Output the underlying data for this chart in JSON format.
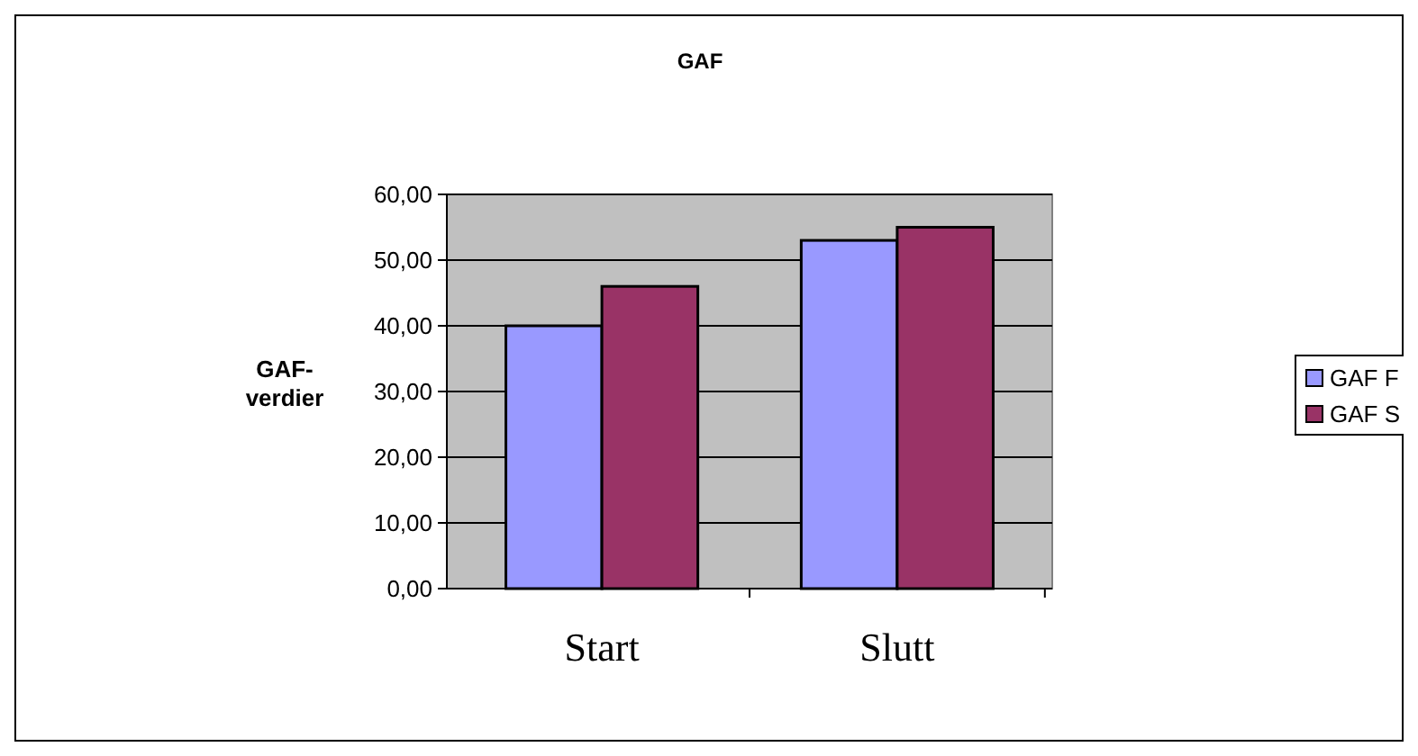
{
  "chart_data": {
    "type": "bar",
    "title": "GAF",
    "ylabel": "GAF-verdier",
    "categories": [
      "Start",
      "Slutt"
    ],
    "series": [
      {
        "name": "GAF F",
        "color": "#9999ff",
        "values": [
          40,
          53
        ]
      },
      {
        "name": "GAF S",
        "color": "#993366",
        "values": [
          46,
          55
        ]
      }
    ],
    "ylim": [
      0,
      60
    ],
    "yticks": [
      {
        "value": 0,
        "label": "0,00"
      },
      {
        "value": 10,
        "label": "10,00"
      },
      {
        "value": 20,
        "label": "20,00"
      },
      {
        "value": 30,
        "label": "30,00"
      },
      {
        "value": 40,
        "label": "40,00"
      },
      {
        "value": 50,
        "label": "50,00"
      },
      {
        "value": 60,
        "label": "60,00"
      }
    ],
    "grid": "y",
    "legend": "right"
  }
}
